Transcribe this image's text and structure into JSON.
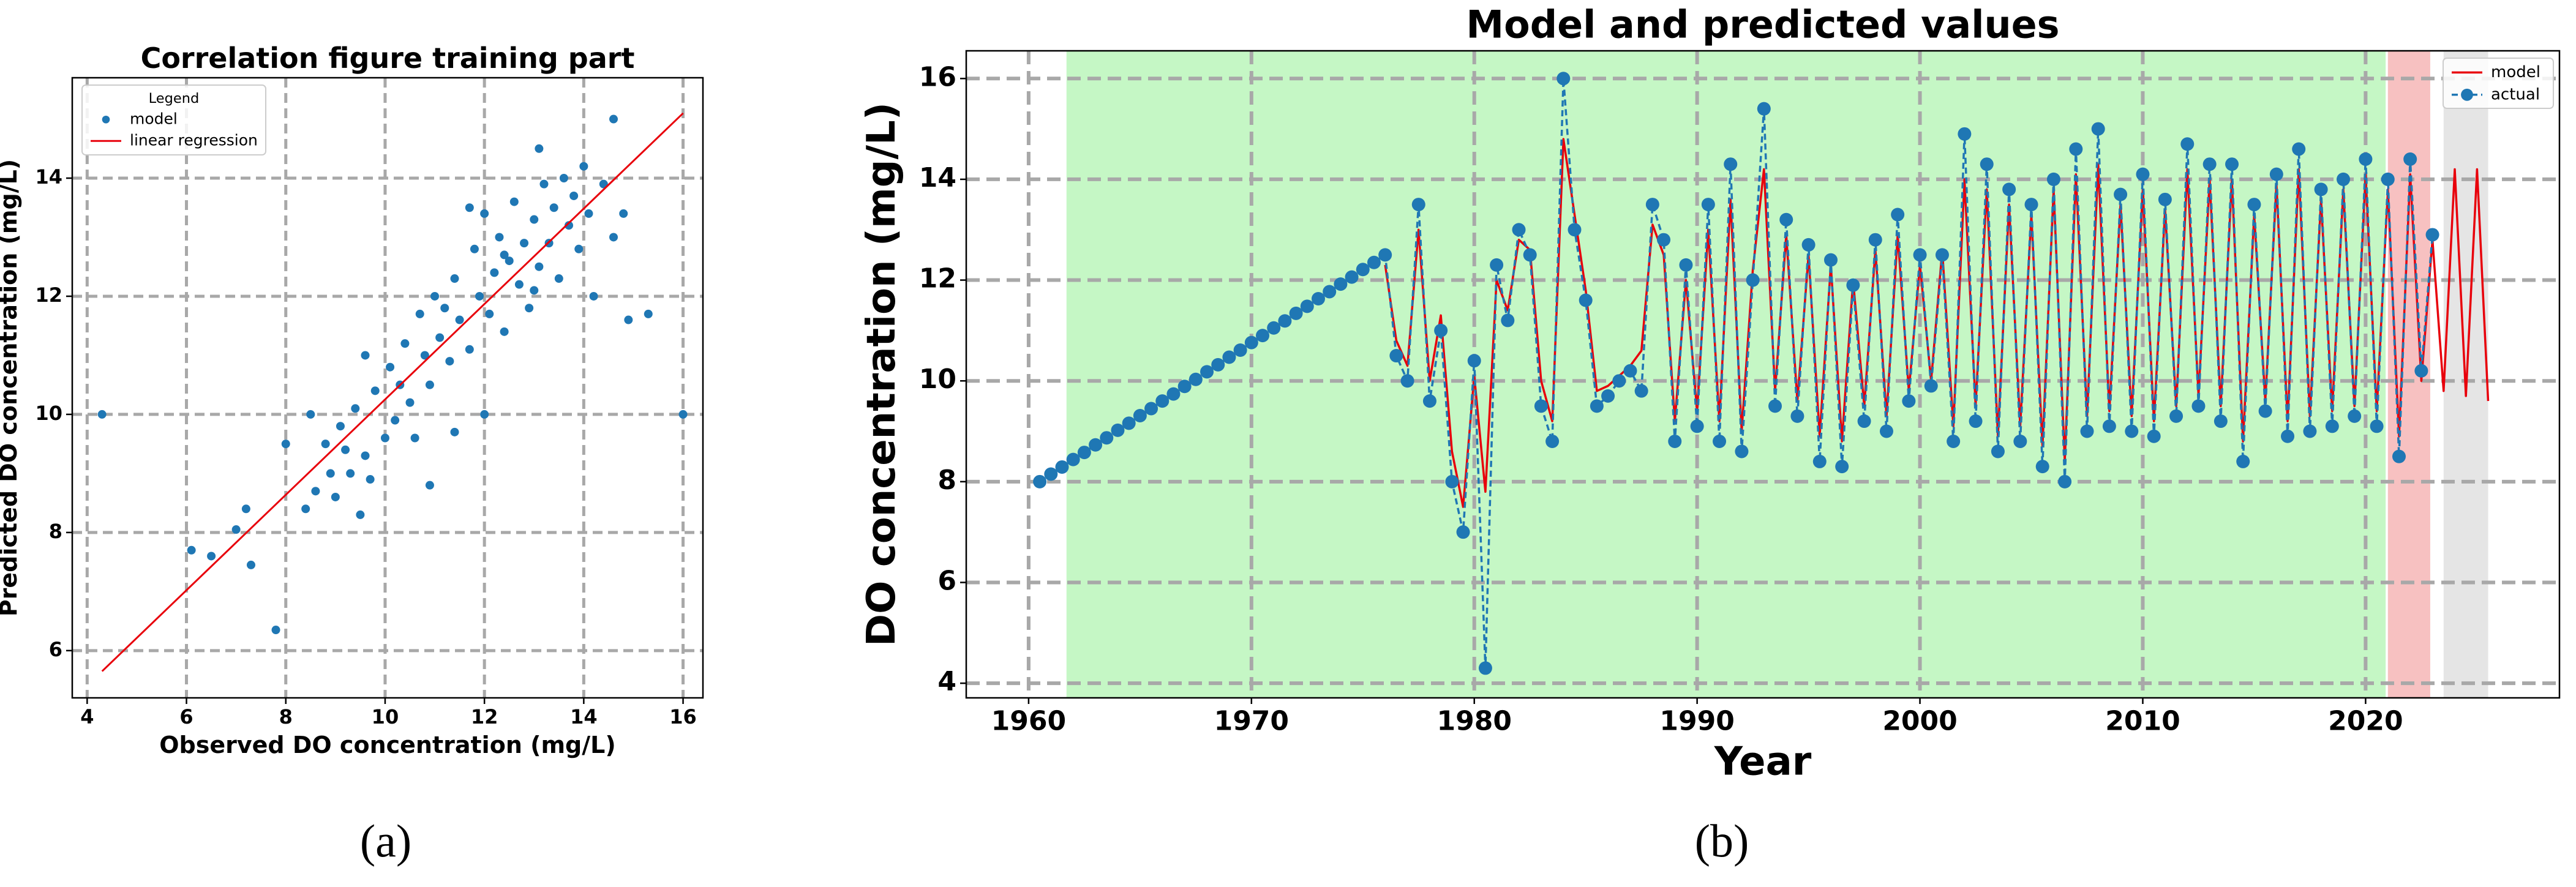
{
  "chart_data": [
    {
      "type": "scatter",
      "title": "Correlation figure training part",
      "xlabel": "Observed DO concentration (mg/L)",
      "ylabel": "Predicted DO concentration (mg/L)",
      "caption": "(a)",
      "xlim": [
        3.7,
        16.4
      ],
      "ylim": [
        5.2,
        15.7
      ],
      "xticks": [
        4,
        6,
        8,
        10,
        12,
        14,
        16
      ],
      "yticks": [
        6,
        8,
        10,
        12,
        14
      ],
      "grid": true,
      "legend_title": "Legend",
      "legend": "upper left",
      "series": [
        {
          "name": "model",
          "color": "#1f77b4",
          "style": "marker",
          "x": [
            8.4,
            8.6,
            8.8,
            9.0,
            9.1,
            9.3,
            9.4,
            9.6,
            9.7,
            9.8,
            10.0,
            10.1,
            10.2,
            10.4,
            10.5,
            10.6,
            10.8,
            10.9,
            11.0,
            11.1,
            11.3,
            11.4,
            11.5,
            11.7,
            11.8,
            11.9,
            12.0,
            12.1,
            12.2,
            12.3,
            12.4,
            12.5,
            12.6,
            12.7,
            12.8,
            12.9,
            13.0,
            13.1,
            13.2,
            13.3,
            13.4,
            13.5,
            13.6,
            13.7,
            13.8,
            13.9,
            14.0,
            14.1,
            14.2,
            14.4,
            14.6,
            14.8,
            9.2,
            8.9,
            10.3,
            11.2,
            12.4,
            13.0,
            9.5,
            10.7,
            4.3,
            6.1,
            6.5,
            7.0,
            7.3,
            7.8,
            7.2,
            16.0,
            15.3,
            14.9,
            14.6,
            13.1,
            12.0,
            11.4,
            9.6,
            8.5,
            10.9,
            11.7,
            8.0
          ],
          "values": [
            8.4,
            8.7,
            9.5,
            8.6,
            9.8,
            9.0,
            10.1,
            9.3,
            8.9,
            10.4,
            9.6,
            10.8,
            9.9,
            11.2,
            10.2,
            9.6,
            11.0,
            10.5,
            12.0,
            11.3,
            10.9,
            12.3,
            11.6,
            11.1,
            12.8,
            12.0,
            13.4,
            11.7,
            12.4,
            13.0,
            11.4,
            12.6,
            13.6,
            12.2,
            12.9,
            11.8,
            13.3,
            12.5,
            13.9,
            12.9,
            13.5,
            12.3,
            14.0,
            13.2,
            13.7,
            12.8,
            14.2,
            13.4,
            12.0,
            13.9,
            13.0,
            13.4,
            9.4,
            9.0,
            10.5,
            11.8,
            12.7,
            12.1,
            8.3,
            11.7,
            10.0,
            7.7,
            7.6,
            8.05,
            7.45,
            6.35,
            8.4,
            10.0,
            11.7,
            11.6,
            15.0,
            14.5,
            10.0,
            9.7,
            11.0,
            10.0,
            8.8,
            13.5,
            9.5
          ]
        },
        {
          "name": "linear regression",
          "color": "#e8000b",
          "style": "line",
          "x": [
            4.3,
            16.0
          ],
          "values": [
            5.65,
            15.1
          ]
        }
      ]
    },
    {
      "type": "line",
      "title": "Model and predicted values",
      "xlabel": "Year",
      "ylabel": "DO concentration (mg/L)",
      "caption": "(b)",
      "xlim": [
        1957.2,
        2028.7
      ],
      "ylim": [
        3.71,
        16.55
      ],
      "xticks": [
        1960,
        1970,
        1980,
        1990,
        2000,
        2010,
        2020
      ],
      "yticks": [
        4,
        6,
        8,
        10,
        12,
        14,
        16
      ],
      "grid": true,
      "legend": "upper right",
      "spans": [
        {
          "xrange": [
            1961.7,
            2020.9
          ],
          "color": "#c5f7c5"
        },
        {
          "xrange": [
            2021.0,
            2022.9
          ],
          "color": "#f7c1c1"
        },
        {
          "xrange": [
            2023.5,
            2025.5
          ],
          "color": "#e5e5e5"
        }
      ],
      "x": [
        1960.5,
        1961,
        1961.5,
        1962,
        1962.5,
        1963,
        1963.5,
        1964,
        1964.5,
        1965,
        1965.5,
        1966,
        1966.5,
        1967,
        1967.5,
        1968,
        1968.5,
        1969,
        1969.5,
        1970,
        1970.5,
        1971,
        1971.5,
        1972,
        1972.5,
        1973,
        1973.5,
        1974,
        1974.5,
        1975,
        1975.5,
        1976,
        1976.5,
        1977,
        1977.5,
        1978,
        1978.5,
        1979,
        1979.5,
        1980,
        1980.5,
        1981,
        1981.5,
        1982,
        1982.5,
        1983,
        1983.5,
        1984,
        1984.5,
        1985,
        1985.5,
        1986,
        1986.5,
        1987,
        1987.5,
        1988,
        1988.5,
        1989,
        1989.5,
        1990,
        1990.5,
        1991,
        1991.5,
        1992,
        1992.5,
        1993,
        1993.5,
        1994,
        1994.5,
        1995,
        1995.5,
        1996,
        1996.5,
        1997,
        1997.5,
        1998,
        1998.5,
        1999,
        1999.5,
        2000,
        2000.5,
        2001,
        2001.5,
        2002,
        2002.5,
        2003,
        2003.5,
        2004,
        2004.5,
        2005,
        2005.5,
        2006,
        2006.5,
        2007,
        2007.5,
        2008,
        2008.5,
        2009,
        2009.5,
        2010,
        2010.5,
        2011,
        2011.5,
        2012,
        2012.5,
        2013,
        2013.5,
        2014,
        2014.5,
        2015,
        2015.5,
        2016,
        2016.5,
        2017,
        2017.5,
        2018,
        2018.5,
        2019,
        2019.5,
        2020,
        2020.5,
        2021,
        2021.5,
        2022,
        2022.5,
        2023,
        2023.5,
        2024,
        2024.5,
        2025,
        2025.5
      ],
      "series": [
        {
          "name": "model",
          "color": "#e8000b",
          "style": "line",
          "values": [
            null,
            null,
            null,
            null,
            null,
            null,
            null,
            null,
            null,
            null,
            null,
            null,
            null,
            null,
            null,
            null,
            null,
            null,
            null,
            null,
            null,
            null,
            null,
            null,
            null,
            null,
            null,
            null,
            null,
            null,
            null,
            12.3,
            10.8,
            10.3,
            13.0,
            10.0,
            11.3,
            8.6,
            7.5,
            10.1,
            7.8,
            12.0,
            11.4,
            12.8,
            12.6,
            10.0,
            9.2,
            14.8,
            13.3,
            11.8,
            9.8,
            9.9,
            10.1,
            10.3,
            10.6,
            13.1,
            12.5,
            9.2,
            12.0,
            9.4,
            13.0,
            9.2,
            13.6,
            9.0,
            12.2,
            14.2,
            9.8,
            12.9,
            9.6,
            12.5,
            8.9,
            12.3,
            8.8,
            12.0,
            9.5,
            12.6,
            9.3,
            12.9,
            9.8,
            12.3,
            10.0,
            12.6,
            9.1,
            14.0,
            9.5,
            13.8,
            8.9,
            13.5,
            9.1,
            13.3,
            8.7,
            13.8,
            8.4,
            14.1,
            9.3,
            14.3,
            9.4,
            13.5,
            9.3,
            13.8,
            9.2,
            13.4,
            9.5,
            14.2,
            9.7,
            14.0,
            9.5,
            14.0,
            8.8,
            13.3,
            9.6,
            13.9,
            9.2,
            14.2,
            9.3,
            13.6,
            9.4,
            13.8,
            9.5,
            14.1,
            9.4,
            13.8,
            8.9,
            14.1,
            10.0,
            12.8,
            9.8,
            14.2,
            9.7,
            14.2,
            9.6
          ]
        },
        {
          "name": "actual",
          "color": "#1f77b4",
          "style": "line-marker",
          "dashed": true,
          "values": [
            8.0,
            8.15,
            8.29,
            8.44,
            8.58,
            8.73,
            8.87,
            9.02,
            9.16,
            9.31,
            9.45,
            9.6,
            9.74,
            9.89,
            10.03,
            10.18,
            10.32,
            10.47,
            10.61,
            10.76,
            10.9,
            11.05,
            11.19,
            11.34,
            11.48,
            11.63,
            11.77,
            11.92,
            12.06,
            12.21,
            12.35,
            12.5,
            10.5,
            10.0,
            13.5,
            9.6,
            11.0,
            8.0,
            7.0,
            10.4,
            4.3,
            12.3,
            11.2,
            13.0,
            12.5,
            9.5,
            8.8,
            16.0,
            13.0,
            11.6,
            9.5,
            9.7,
            10.0,
            10.2,
            9.8,
            13.5,
            12.8,
            8.8,
            12.3,
            9.1,
            13.5,
            8.8,
            14.3,
            8.6,
            12.0,
            15.4,
            9.5,
            13.2,
            9.3,
            12.7,
            8.4,
            12.4,
            8.3,
            11.9,
            9.2,
            12.8,
            9.0,
            13.3,
            9.6,
            12.5,
            9.9,
            12.5,
            8.8,
            14.9,
            9.2,
            14.3,
            8.6,
            13.8,
            8.8,
            13.5,
            8.3,
            14.0,
            8.0,
            14.6,
            9.0,
            15.0,
            9.1,
            13.7,
            9.0,
            14.1,
            8.9,
            13.6,
            9.3,
            14.7,
            9.5,
            14.3,
            9.2,
            14.3,
            8.4,
            13.5,
            9.4,
            14.1,
            8.9,
            14.6,
            9.0,
            13.8,
            9.1,
            14.0,
            9.3,
            14.4,
            9.1,
            14.0,
            8.5,
            14.4,
            10.2,
            12.9,
            null,
            null,
            null,
            null,
            null
          ]
        }
      ]
    }
  ]
}
